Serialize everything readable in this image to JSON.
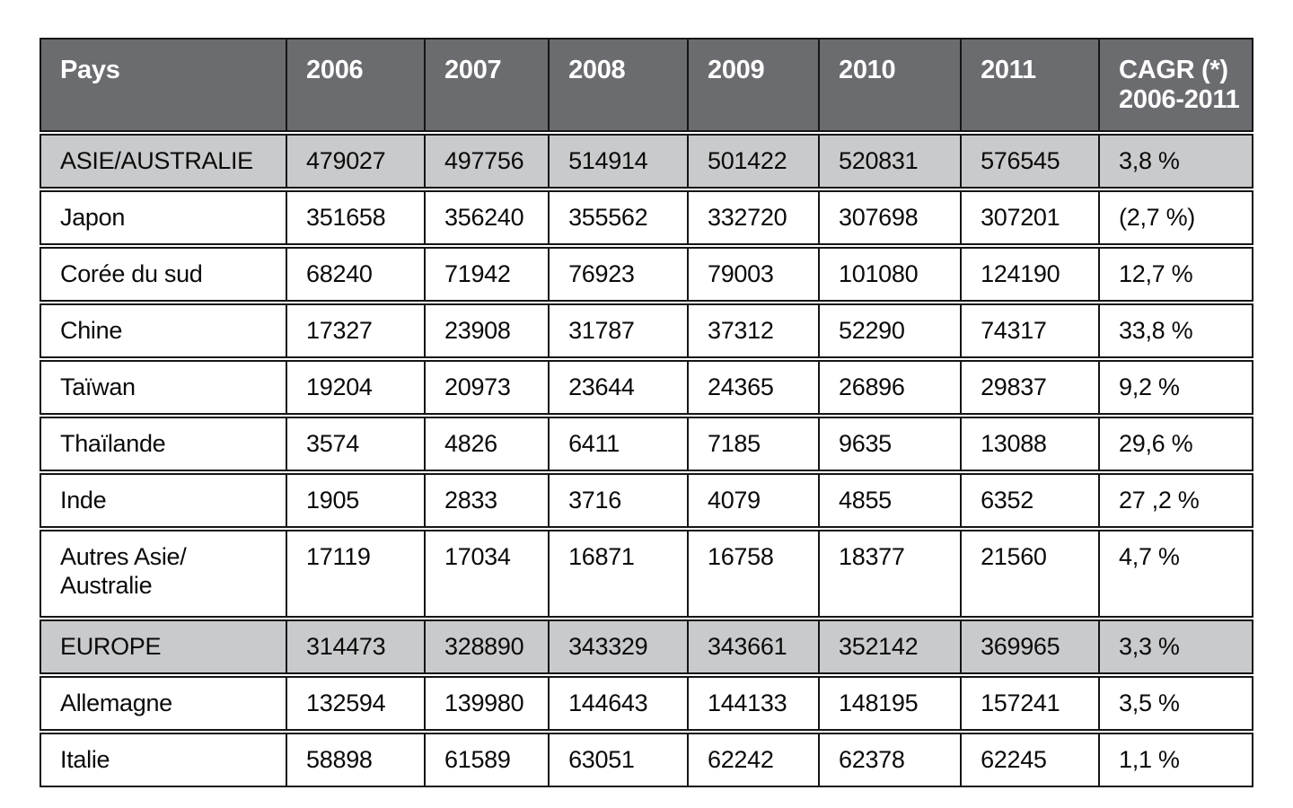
{
  "colors": {
    "header_bg": "#6b6c70",
    "header_text": "#ffffff",
    "highlight_row_bg": "#c9cacc",
    "row_bg": "#ffffff",
    "border": "#151517",
    "body_text": "#0a0a0a"
  },
  "table": {
    "header": {
      "country_label": "Pays",
      "years": [
        "2006",
        "2007",
        "2008",
        "2009",
        "2010",
        "2011"
      ],
      "cagr_line1": "CAGR (*)",
      "cagr_line2": "2006-2011"
    },
    "rows": [
      {
        "name": "ASIE/AUSTRALIE",
        "values": [
          "479027",
          "497756",
          "514914",
          "501422",
          "520831",
          "576545"
        ],
        "cagr": "3,8 %",
        "highlight": true,
        "tall": false
      },
      {
        "name": "Japon",
        "values": [
          "351658",
          "356240",
          "355562",
          "332720",
          "307698",
          "307201"
        ],
        "cagr": "(2,7 %)",
        "highlight": false,
        "tall": false
      },
      {
        "name": "Corée du sud",
        "values": [
          "68240",
          "71942",
          "76923",
          "79003",
          "101080",
          "124190"
        ],
        "cagr": "12,7 %",
        "highlight": false,
        "tall": false
      },
      {
        "name": "Chine",
        "values": [
          "17327",
          "23908",
          "31787",
          "37312",
          "52290",
          "74317"
        ],
        "cagr": "33,8 %",
        "highlight": false,
        "tall": false
      },
      {
        "name": "Taïwan",
        "values": [
          "19204",
          "20973",
          "23644",
          "24365",
          "26896",
          "29837"
        ],
        "cagr": "9,2 %",
        "highlight": false,
        "tall": false
      },
      {
        "name": "Thaïlande",
        "values": [
          "3574",
          "4826",
          "6411",
          "7185",
          "9635",
          "13088"
        ],
        "cagr": "29,6 %",
        "highlight": false,
        "tall": false
      },
      {
        "name": "Inde",
        "values": [
          "1905",
          "2833",
          "3716",
          "4079",
          "4855",
          "6352"
        ],
        "cagr": "27 ,2 %",
        "highlight": false,
        "tall": false
      },
      {
        "name": "Autres Asie/\nAustralie",
        "values": [
          "17119",
          "17034",
          "16871",
          "16758",
          "18377",
          "21560"
        ],
        "cagr": "4,7 %",
        "highlight": false,
        "tall": true
      },
      {
        "name": "EUROPE",
        "values": [
          "314473",
          "328890",
          "343329",
          "343661",
          "352142",
          "369965"
        ],
        "cagr": "3,3 %",
        "highlight": true,
        "tall": false
      },
      {
        "name": "Allemagne",
        "values": [
          "132594",
          "139980",
          "144643",
          "144133",
          "148195",
          "157241"
        ],
        "cagr": "3,5 %",
        "highlight": false,
        "tall": false
      },
      {
        "name": "Italie",
        "values": [
          "58898",
          "61589",
          "63051",
          "62242",
          "62378",
          "62245"
        ],
        "cagr": "1,1 %",
        "highlight": false,
        "tall": false
      }
    ]
  }
}
